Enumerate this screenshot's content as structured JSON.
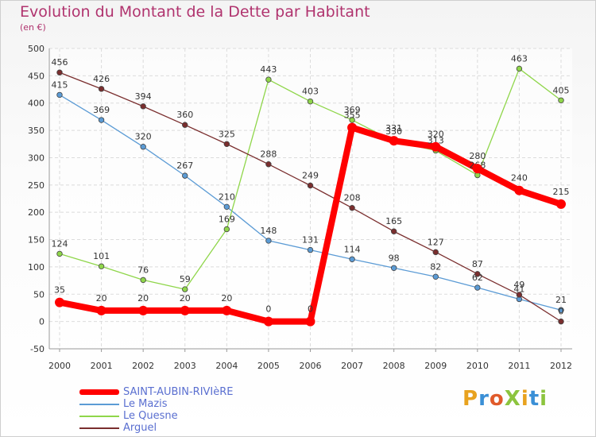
{
  "title": "Evolution du Montant de la Dette par Habitant",
  "subtitle": "(en €)",
  "logo": "ProXiti",
  "chart_data": {
    "type": "line",
    "title": "Evolution du Montant de la Dette par Habitant",
    "ylabel": "(en €)",
    "xlabel": "",
    "x": [
      "2000",
      "2001",
      "2002",
      "2003",
      "2004",
      "2005",
      "2006",
      "2007",
      "2008",
      "2009",
      "2010",
      "2011",
      "2012"
    ],
    "ylim": [
      -50,
      500
    ],
    "yticks": [
      -50,
      0,
      50,
      100,
      150,
      200,
      250,
      300,
      350,
      400,
      450,
      500
    ],
    "grid": true,
    "legend_position": "bottom-left",
    "series": [
      {
        "name": "Le Mazis",
        "color": "#5b9bd5",
        "values": [
          415,
          369,
          320,
          267,
          210,
          148,
          131,
          114,
          98,
          82,
          62,
          41,
          21
        ],
        "labels": [
          "415",
          "369",
          "320",
          "267",
          "210",
          "148",
          "131",
          "114",
          "98",
          "82",
          "62",
          "41",
          "21"
        ]
      },
      {
        "name": "Le Quesne",
        "color": "#8fd64a",
        "values": [
          124,
          101,
          76,
          59,
          169,
          443,
          403,
          369,
          330,
          313,
          268,
          463,
          405
        ],
        "labels": [
          "124",
          "101",
          "76",
          "59",
          "169",
          "443",
          "403",
          "369",
          "330",
          "313",
          "268",
          "463",
          "405"
        ]
      },
      {
        "name": "Arguel",
        "color": "#7a2e2e",
        "values": [
          456,
          426,
          394,
          360,
          325,
          288,
          249,
          208,
          165,
          127,
          87,
          49,
          0
        ],
        "labels": [
          "456",
          "426",
          "394",
          "360",
          "325",
          "288",
          "249",
          "208",
          "165",
          "127",
          "87",
          "49",
          "0"
        ]
      },
      {
        "name": "SAINT-AUBIN-RIVIèRE",
        "color": "#ff0000",
        "values": [
          35,
          20,
          20,
          20,
          20,
          0,
          0,
          355,
          331,
          320,
          280,
          240,
          215
        ],
        "labels": [
          "35",
          "20",
          "20",
          "20",
          "20",
          "0",
          "0",
          "355",
          "331",
          "320",
          "280",
          "240",
          "215"
        ]
      }
    ]
  },
  "legend": [
    {
      "label": "SAINT-AUBIN-RIVIèRE",
      "color": "#ff0000",
      "thick": true
    },
    {
      "label": "Le Mazis",
      "color": "#5b9bd5",
      "thick": false
    },
    {
      "label": "Le Quesne",
      "color": "#8fd64a",
      "thick": false
    },
    {
      "label": "Arguel",
      "color": "#7a2e2e",
      "thick": false
    }
  ]
}
